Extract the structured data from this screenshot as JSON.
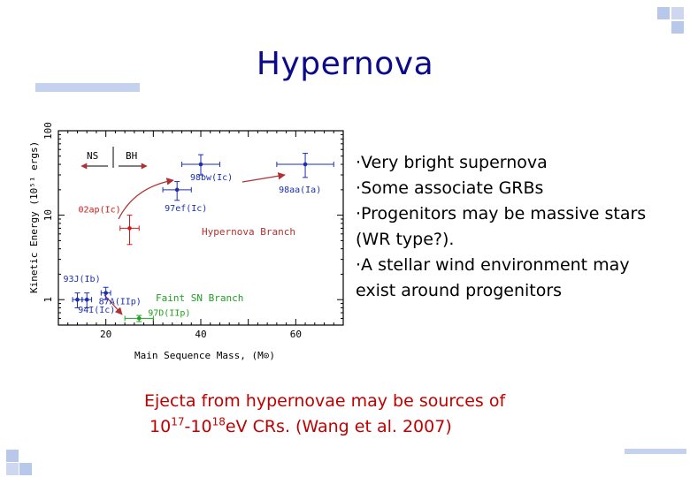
{
  "slide": {
    "title": "Hypernova",
    "bullets": [
      "·Very bright supernova",
      "·Some associate GRBs",
      "·Progenitors may be massive stars",
      "(WR type?).",
      "·A stellar wind environment may",
      "exist around progenitors"
    ],
    "caption": {
      "line1": "Ejecta from hypernovae may be sources of",
      "base1": "10",
      "exp1": "17",
      "dash": "-",
      "base2": "10",
      "exp2": "18",
      "tail": "eV CRs. (Wang et al. 2007)"
    }
  },
  "colors": {
    "title": "#0a0a8a",
    "caption": "#c00000",
    "decor": "#b8c8ea",
    "blue_points": "#1a2fb0",
    "red_points": "#d01818",
    "green_points": "#20a020",
    "arrows": "#b03030"
  },
  "chart_data": {
    "type": "scatter",
    "xlabel": "Main Sequence Mass, (M⊙)",
    "ylabel": "Kinetic Energy (10⁵¹ ergs)",
    "xlog": false,
    "ylog": true,
    "xlim": [
      10,
      70
    ],
    "ylim": [
      0.5,
      100
    ],
    "x_ticks": [
      20,
      40,
      60
    ],
    "y_ticks": [
      1,
      10,
      100
    ],
    "x_tick_labels": [
      "20",
      "40",
      "60"
    ],
    "y_tick_labels": [
      "1",
      "10",
      "100"
    ],
    "annotations": {
      "ns": "NS",
      "bh": "BH",
      "hypernova_branch": "Hypernova Branch",
      "faint_branch": "Faint SN Branch"
    },
    "points": [
      {
        "label": "98bw(Ic)",
        "x": 40,
        "y": 40,
        "xerr": 4,
        "yerr_low": 10,
        "yerr_high": 12,
        "color": "blue"
      },
      {
        "label": "98aa(Ia)",
        "x": 62,
        "y": 40,
        "xerr": 6,
        "yerr_low": 12,
        "yerr_high": 14,
        "color": "blue"
      },
      {
        "label": "97ef(Ic)",
        "x": 35,
        "y": 20,
        "xerr": 3,
        "yerr_low": 5,
        "yerr_high": 5,
        "color": "blue"
      },
      {
        "label": "02ap(Ic)",
        "x": 25,
        "y": 7,
        "xerr": 2,
        "yerr_low": 2.5,
        "yerr_high": 3,
        "color": "red"
      },
      {
        "label": "93J(Ib)",
        "x": 14,
        "y": 1,
        "xerr": 1,
        "yerr_low": 0.2,
        "yerr_high": 0.2,
        "color": "blue"
      },
      {
        "label": "94I(Ic)",
        "x": 16,
        "y": 1,
        "xerr": 1,
        "yerr_low": 0.2,
        "yerr_high": 0.2,
        "color": "blue"
      },
      {
        "label": "87A(IIp)",
        "x": 20,
        "y": 1.2,
        "xerr": 1,
        "yerr_low": 0.2,
        "yerr_high": 0.2,
        "color": "blue"
      },
      {
        "label": "97D(IIp)",
        "x": 27,
        "y": 0.6,
        "xerr": 3,
        "yerr_low": 0.05,
        "yerr_high": 0.05,
        "color": "green"
      }
    ]
  }
}
